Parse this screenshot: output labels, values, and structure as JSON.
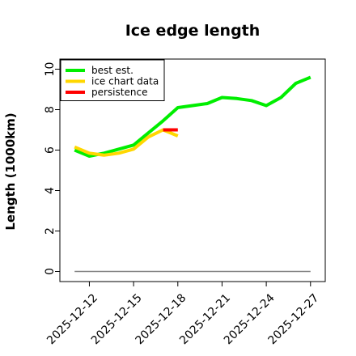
{
  "chart_data": {
    "type": "line",
    "title": "Ice edge length",
    "xlabel": "",
    "ylabel": "Length (1000km)",
    "x_axis_type": "date",
    "xlim": [
      "2025-12-10",
      "2025-12-28"
    ],
    "ylim": [
      -0.5,
      10.5
    ],
    "x_ticks": [
      "2025-12-12",
      "2025-12-15",
      "2025-12-18",
      "2025-12-21",
      "2025-12-24",
      "2025-12-27"
    ],
    "y_ticks": [
      0,
      2,
      4,
      6,
      8,
      10
    ],
    "grid": false,
    "legend_position": "top-left",
    "series": [
      {
        "name": "best est.",
        "color": "#00ee00",
        "points": [
          [
            "2025-12-11",
            6.0
          ],
          [
            "2025-12-12",
            5.7
          ],
          [
            "2025-12-13",
            5.85
          ],
          [
            "2025-12-14",
            6.05
          ],
          [
            "2025-12-15",
            6.25
          ],
          [
            "2025-12-16",
            6.85
          ],
          [
            "2025-12-17",
            7.45
          ],
          [
            "2025-12-18",
            8.1
          ],
          [
            "2025-12-19",
            8.2
          ],
          [
            "2025-12-20",
            8.3
          ],
          [
            "2025-12-21",
            8.6
          ],
          [
            "2025-12-22",
            8.55
          ],
          [
            "2025-12-23",
            8.45
          ],
          [
            "2025-12-24",
            8.2
          ],
          [
            "2025-12-25",
            8.6
          ],
          [
            "2025-12-26",
            9.3
          ],
          [
            "2025-12-27",
            9.6
          ]
        ]
      },
      {
        "name": "ice chart data",
        "color": "#ffd700",
        "points": [
          [
            "2025-12-11",
            6.15
          ],
          [
            "2025-12-12",
            5.85
          ],
          [
            "2025-12-13",
            5.75
          ],
          [
            "2025-12-14",
            5.85
          ],
          [
            "2025-12-15",
            6.05
          ],
          [
            "2025-12-16",
            6.65
          ],
          [
            "2025-12-17",
            7.0
          ],
          [
            "2025-12-18",
            6.7
          ]
        ]
      },
      {
        "name": "persistence",
        "color": "#ff0000",
        "points": [
          [
            "2025-12-17",
            7.0
          ],
          [
            "2025-12-18",
            7.0
          ]
        ]
      },
      {
        "name": "",
        "color": "#808080",
        "points": [
          [
            "2025-12-11",
            0.0
          ],
          [
            "2025-12-27",
            0.0
          ]
        ]
      }
    ]
  }
}
